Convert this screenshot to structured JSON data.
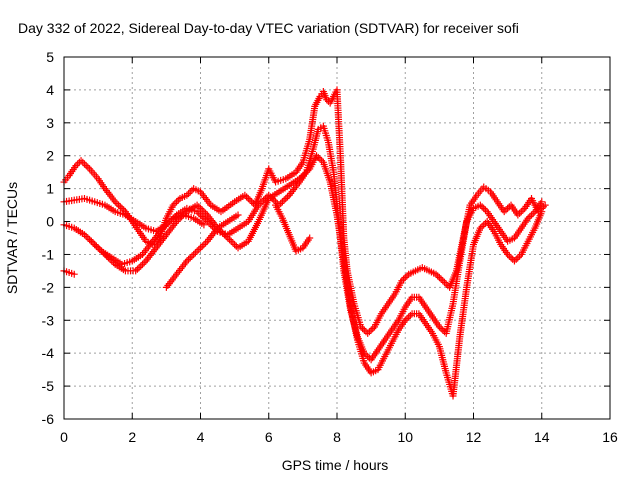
{
  "chart_data": {
    "type": "scatter",
    "title": "Day 332 of 2022, Sidereal Day-to-day VTEC variation (SDTVAR) for receiver sofi",
    "xlabel": "GPS time / hours",
    "ylabel": "SDTVAR / TECUs",
    "xlim": [
      0,
      16
    ],
    "ylim": [
      -6,
      5
    ],
    "xticks": [
      0,
      2,
      4,
      6,
      8,
      10,
      12,
      14,
      16
    ],
    "yticks": [
      -6,
      -5,
      -4,
      -3,
      -2,
      -1,
      0,
      1,
      2,
      3,
      4,
      5
    ],
    "grid": true,
    "marker": "plus",
    "color": "#ff0000",
    "series": [
      {
        "x": [
          0.0,
          0.15,
          0.35,
          0.5,
          0.75,
          1.0,
          1.2,
          1.5,
          1.8,
          2.0,
          2.2,
          2.4,
          2.6,
          2.8,
          3.0,
          3.2,
          3.4,
          3.6,
          3.8,
          4.0,
          4.3,
          4.6,
          5.0,
          5.3,
          5.6,
          5.8,
          6.0,
          6.2,
          6.5,
          6.8,
          7.0,
          7.2,
          7.35,
          7.5,
          7.6,
          7.7,
          7.8,
          7.9,
          8.0,
          8.1,
          8.2,
          8.3,
          8.5,
          8.7,
          8.9,
          9.1,
          9.3,
          9.5,
          9.7,
          9.9,
          10.1,
          10.3,
          10.5,
          10.7,
          10.9,
          11.1,
          11.3,
          11.5,
          11.7,
          11.9,
          12.1,
          12.3,
          12.5,
          12.7,
          12.9,
          13.1,
          13.3,
          13.5,
          13.7,
          13.9,
          14.1
        ],
        "y": [
          1.2,
          1.4,
          1.7,
          1.85,
          1.6,
          1.3,
          1.0,
          0.6,
          0.3,
          0.0,
          -0.3,
          -0.6,
          -0.7,
          -0.5,
          0.1,
          0.5,
          0.7,
          0.8,
          1.0,
          0.9,
          0.5,
          0.3,
          0.6,
          0.8,
          0.5,
          1.0,
          1.6,
          1.2,
          1.3,
          1.5,
          1.8,
          2.5,
          3.5,
          3.8,
          3.95,
          3.7,
          3.6,
          3.8,
          4.0,
          2.0,
          -0.5,
          -1.5,
          -2.5,
          -3.2,
          -3.4,
          -3.2,
          -2.8,
          -2.5,
          -2.2,
          -1.8,
          -1.6,
          -1.5,
          -1.4,
          -1.5,
          -1.6,
          -1.8,
          -2.0,
          -1.5,
          -0.5,
          0.5,
          0.8,
          1.05,
          0.9,
          0.6,
          0.3,
          0.5,
          0.2,
          0.4,
          0.7,
          0.3,
          0.5
        ]
      },
      {
        "x": [
          0.0,
          0.3,
          0.6,
          0.9,
          1.2,
          1.5,
          1.8,
          2.1,
          2.4,
          2.7,
          3.0,
          3.3,
          3.6,
          3.9,
          4.2,
          4.5,
          4.8,
          5.1,
          5.4,
          5.7,
          6.0,
          6.3,
          6.6,
          6.9,
          7.1,
          7.3,
          7.45,
          7.6,
          7.75,
          7.9,
          8.05,
          8.2,
          8.4,
          8.6,
          8.8,
          9.0,
          9.2,
          9.4,
          9.6,
          9.8,
          10.0,
          10.2,
          10.4,
          10.6,
          10.8,
          11.0,
          11.2,
          11.4,
          11.6,
          11.8,
          12.0,
          12.2,
          12.4,
          12.6,
          12.8,
          13.0,
          13.2,
          13.4,
          13.6,
          13.8,
          14.0
        ],
        "y": [
          0.6,
          0.65,
          0.7,
          0.6,
          0.5,
          0.3,
          0.2,
          0.0,
          -0.2,
          -0.3,
          -0.1,
          0.2,
          0.4,
          0.3,
          0.0,
          -0.3,
          -0.4,
          -0.2,
          0.0,
          0.5,
          0.8,
          0.5,
          0.8,
          1.2,
          1.5,
          2.2,
          2.8,
          2.9,
          2.4,
          1.5,
          0.0,
          -1.5,
          -2.7,
          -3.5,
          -4.0,
          -4.2,
          -3.9,
          -3.6,
          -3.3,
          -3.0,
          -2.6,
          -2.3,
          -2.3,
          -2.6,
          -2.9,
          -3.2,
          -3.4,
          -2.5,
          -1.2,
          0.0,
          0.4,
          0.5,
          0.3,
          0.0,
          -0.3,
          -0.6,
          -0.5,
          -0.2,
          0.1,
          0.3,
          0.6
        ]
      },
      {
        "x": [
          0.0,
          0.3,
          0.6,
          0.9,
          1.2,
          1.5,
          1.8,
          2.1,
          2.4,
          2.7,
          3.0,
          3.3,
          3.6,
          3.9,
          4.2,
          4.5,
          4.8,
          5.1,
          5.4,
          5.7,
          6.0,
          6.3,
          6.6,
          6.9,
          7.2,
          7.4,
          7.6,
          7.8,
          8.0,
          8.2,
          8.4,
          8.6,
          8.8,
          9.0,
          9.2,
          9.4,
          9.6,
          9.8,
          10.0,
          10.2,
          10.4,
          10.6,
          10.8,
          11.0,
          11.2,
          11.4,
          11.6,
          11.8,
          12.0,
          12.2,
          12.4,
          12.6,
          12.8,
          13.0,
          13.2,
          13.4,
          13.6,
          13.8,
          14.0
        ],
        "y": [
          -0.1,
          -0.2,
          -0.4,
          -0.7,
          -1.0,
          -1.3,
          -1.5,
          -1.5,
          -1.2,
          -0.8,
          -0.4,
          0.0,
          0.3,
          0.5,
          0.2,
          -0.2,
          -0.5,
          -0.8,
          -0.6,
          0.0,
          0.7,
          0.9,
          1.1,
          1.3,
          1.6,
          2.0,
          1.8,
          1.2,
          0.2,
          -1.2,
          -2.6,
          -3.6,
          -4.3,
          -4.6,
          -4.5,
          -4.1,
          -3.7,
          -3.3,
          -3.0,
          -2.8,
          -2.8,
          -3.1,
          -3.4,
          -3.8,
          -4.6,
          -5.3,
          -3.5,
          -2.0,
          -0.7,
          -0.2,
          0.0,
          -0.3,
          -0.7,
          -1.0,
          -1.2,
          -1.0,
          -0.6,
          -0.2,
          0.3
        ]
      },
      {
        "x": [
          0.0,
          0.15,
          0.3
        ],
        "y": [
          -1.5,
          -1.55,
          -1.6
        ]
      },
      {
        "x": [
          3.0,
          3.3,
          3.6,
          3.9,
          4.2,
          4.5,
          4.8,
          5.1
        ],
        "y": [
          -2.0,
          -1.6,
          -1.2,
          -0.9,
          -0.6,
          -0.2,
          0.0,
          0.2
        ]
      },
      {
        "x": [
          0.8,
          1.1,
          1.4,
          1.7,
          2.0,
          2.3,
          2.6,
          2.9,
          3.2,
          3.5,
          3.8,
          4.1
        ],
        "y": [
          -0.6,
          -0.9,
          -1.1,
          -1.3,
          -1.2,
          -1.0,
          -0.6,
          -0.2,
          0.1,
          0.2,
          0.1,
          -0.1
        ]
      },
      {
        "x": [
          6.2,
          6.4,
          6.6,
          6.8,
          7.0,
          7.2
        ],
        "y": [
          0.5,
          0.1,
          -0.4,
          -0.9,
          -0.8,
          -0.5
        ]
      }
    ]
  }
}
